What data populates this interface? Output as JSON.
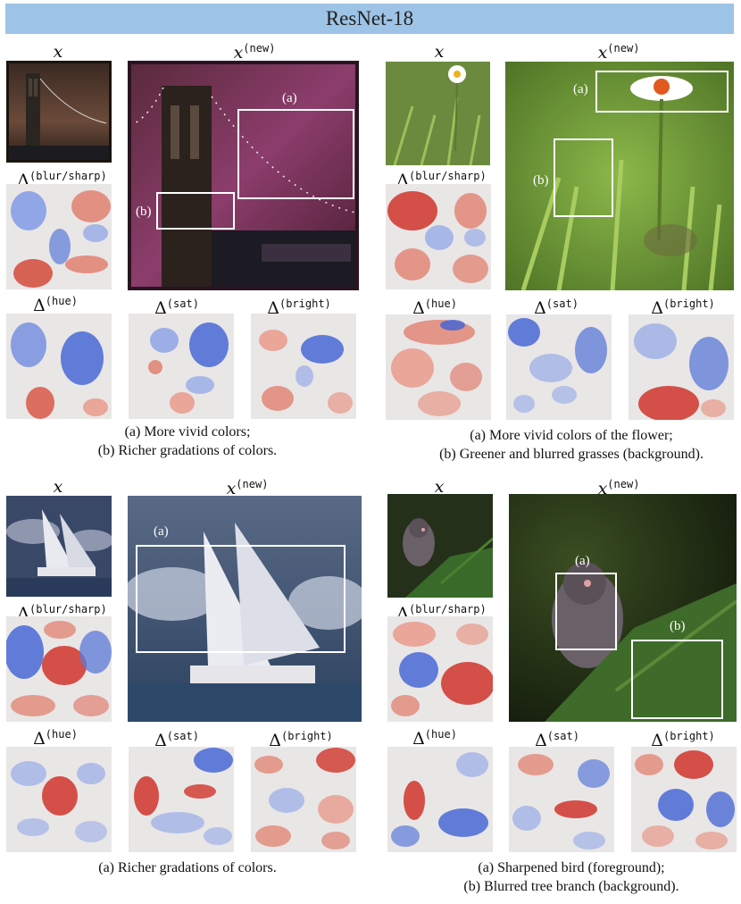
{
  "header": {
    "title": "ResNet-18"
  },
  "labels": {
    "x": "x",
    "x_new_base": "x",
    "x_new_sup": "(new)",
    "delta": "Δ",
    "blur_sharp": "(blur/sharp)",
    "hue": "(hue)",
    "sat": "(sat)",
    "bright": "(bright)"
  },
  "panels": {
    "tl": {
      "tag_a": "(a)",
      "tag_b": "(b)",
      "cap1": "(a)  More vivid colors;",
      "cap2": "(b)  Richer gradations of colors."
    },
    "tr": {
      "tag_a": "(a)",
      "tag_b": "(b)",
      "cap1": "(a)  More vivid colors of the flower;",
      "cap2": "(b)  Greener and blurred grasses (background)."
    },
    "bl": {
      "tag_a": "(a)",
      "cap1": "(a) Richer gradations of colors."
    },
    "br": {
      "tag_a": "(a)",
      "tag_b": "(b)",
      "cap1": "(a)  Sharpened bird (foreground);",
      "cap2": "(b) Blurred tree branch (background)."
    }
  },
  "colors": {
    "banner": "#9dc3e6",
    "heat_red": "#c8302a",
    "heat_blue": "#3a5fd0",
    "heat_neutral": "#e9e6e6"
  }
}
